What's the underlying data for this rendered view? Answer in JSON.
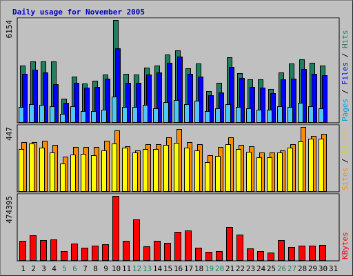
{
  "chart_data": {
    "type": "bar",
    "title": "Daily usage for November 2005",
    "categories": [
      "1",
      "2",
      "3",
      "4",
      "5",
      "6",
      "7",
      "8",
      "9",
      "10",
      "11",
      "12",
      "13",
      "14",
      "15",
      "16",
      "17",
      "18",
      "19",
      "20",
      "21",
      "22",
      "23",
      "24",
      "25",
      "26",
      "27",
      "28",
      "29",
      "30",
      "31"
    ],
    "weekend_days": [
      "5",
      "6",
      "12",
      "13",
      "19",
      "20",
      "26",
      "27"
    ],
    "panels": [
      {
        "name": "hits-files-pages",
        "max_label": "6154",
        "ylim": [
          0,
          6154
        ],
        "legend": [
          "Pages",
          "Files",
          "Hits"
        ],
        "series": [
          {
            "name": "Hits",
            "color": "#1f7f5f",
            "values": [
              3400,
              3640,
              3640,
              3640,
              1430,
              2750,
              2350,
              2500,
              2890,
              6100,
              2920,
              2890,
              3280,
              3420,
              4060,
              4320,
              3260,
              3520,
              1900,
              2380,
              3900,
              2960,
              2580,
              2580,
              2000,
              2990,
              3520,
              3780,
              3560,
              3400,
              null
            ]
          },
          {
            "name": "Files",
            "color": "#0000ff",
            "values": [
              2900,
              3170,
              2990,
              2300,
              1170,
              2360,
              2090,
              2130,
              2630,
              4450,
              2360,
              2370,
              2880,
              3000,
              3580,
              3950,
              2910,
              2740,
              1640,
              1810,
              3340,
              2660,
              2140,
              2110,
              1770,
              2600,
              2640,
              3180,
              2930,
              2850,
              null
            ]
          },
          {
            "name": "Pages",
            "color": "#4fc8f8",
            "values": [
              950,
              1100,
              1060,
              1000,
              530,
              1000,
              700,
              700,
              780,
              1550,
              960,
              950,
              1060,
              850,
              1250,
              1370,
              1100,
              1300,
              700,
              850,
              1100,
              950,
              850,
              800,
              800,
              1000,
              950,
              1200,
              1000,
              870,
              null
            ]
          }
        ]
      },
      {
        "name": "visits-sites",
        "max_label": "447",
        "ylim": [
          0,
          447
        ],
        "legend": [
          "Sites",
          "Visits"
        ],
        "series": [
          {
            "name": "Visits",
            "color": "#ff8c00",
            "values": [
              340,
              340,
              350,
              320,
              240,
              305,
              305,
              305,
              350,
              420,
              310,
              280,
              325,
              325,
              370,
              430,
              340,
              325,
              250,
              305,
              370,
              320,
              310,
              270,
              270,
              280,
              325,
              440,
              380,
              395,
              null
            ]
          },
          {
            "name": "Sites",
            "color": "#ffff00",
            "values": [
              290,
              330,
              300,
              270,
              195,
              255,
              260,
              250,
              280,
              330,
              300,
              270,
              290,
              290,
              320,
              335,
              300,
              280,
              200,
              245,
              325,
              290,
              275,
              235,
              235,
              270,
              300,
              345,
              360,
              360,
              null
            ]
          }
        ]
      },
      {
        "name": "kbytes",
        "max_label": "474395",
        "ylim": [
          0,
          474395
        ],
        "legend": [
          "KBytes"
        ],
        "series": [
          {
            "name": "KBytes",
            "color": "#ff0000",
            "values": [
              147000,
              183000,
              150000,
              155000,
              70000,
              125000,
              95000,
              110000,
              120000,
              470000,
              145000,
              302000,
              103000,
              145000,
              130000,
              212000,
              218000,
              93000,
              64000,
              70000,
              243000,
              188000,
              92000,
              68000,
              58000,
              150000,
              100000,
              112000,
              111000,
              115000,
              null
            ]
          }
        ]
      }
    ]
  }
}
